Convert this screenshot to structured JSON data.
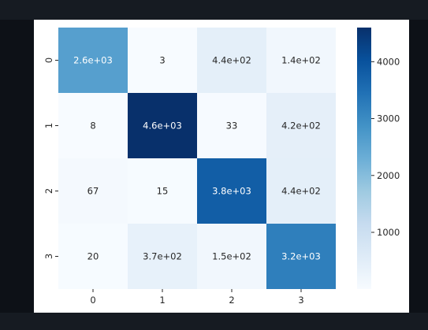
{
  "chart_data": {
    "type": "heatmap",
    "title": "",
    "xlabel": "",
    "ylabel": "",
    "x_categories": [
      "0",
      "1",
      "2",
      "3"
    ],
    "y_categories": [
      "0",
      "1",
      "2",
      "3"
    ],
    "values": [
      [
        2600,
        3,
        440,
        140
      ],
      [
        8,
        4600,
        33,
        420
      ],
      [
        67,
        15,
        3800,
        440
      ],
      [
        20,
        370,
        150,
        3200
      ]
    ],
    "annotations": [
      [
        "2.6e+03",
        "3",
        "4.4e+02",
        "1.4e+02"
      ],
      [
        "8",
        "4.6e+03",
        "33",
        "4.2e+02"
      ],
      [
        "67",
        "15",
        "3.8e+03",
        "4.4e+02"
      ],
      [
        "20",
        "3.7e+02",
        "1.5e+02",
        "3.2e+03"
      ]
    ],
    "colormap": "Blues",
    "colorbar": {
      "range": [
        3,
        4600
      ],
      "ticks": [
        1000,
        2000,
        3000,
        4000
      ],
      "tick_labels": [
        "1000",
        "2000",
        "3000",
        "4000"
      ]
    },
    "grid": false
  }
}
